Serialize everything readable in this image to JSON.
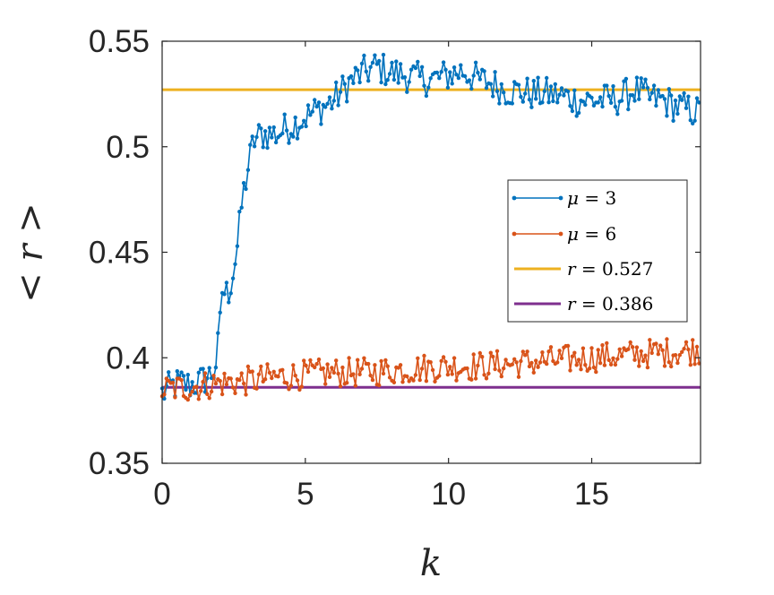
{
  "chart_data": {
    "type": "line",
    "title": "",
    "xlabel": "k",
    "ylabel": "< r >",
    "xlim": [
      0,
      18.8
    ],
    "ylim": [
      0.35,
      0.55
    ],
    "xticks": [
      0,
      5,
      10,
      15
    ],
    "yticks": [
      0.35,
      0.4,
      0.45,
      0.5,
      0.55
    ],
    "xtick_labels": [
      "0",
      "5",
      "10",
      "15"
    ],
    "ytick_labels": [
      "0.35",
      "0.4",
      "0.45",
      "0.5",
      "0.55"
    ],
    "grid": false,
    "legend_position": "right",
    "series": [
      {
        "name": "μ = 3",
        "style": "line-marker",
        "color": "#0072BD",
        "anchors": [
          [
            0,
            0.383
          ],
          [
            0.3,
            0.386
          ],
          [
            0.6,
            0.388
          ],
          [
            1.0,
            0.387
          ],
          [
            1.4,
            0.389
          ],
          [
            1.7,
            0.392
          ],
          [
            1.85,
            0.395
          ],
          [
            2.0,
            0.41
          ],
          [
            2.1,
            0.432
          ],
          [
            2.3,
            0.43
          ],
          [
            2.5,
            0.442
          ],
          [
            2.65,
            0.455
          ],
          [
            2.8,
            0.475
          ],
          [
            3.0,
            0.49
          ],
          [
            3.2,
            0.503
          ],
          [
            3.5,
            0.506
          ],
          [
            4.0,
            0.506
          ],
          [
            4.5,
            0.51
          ],
          [
            5.0,
            0.514
          ],
          [
            5.5,
            0.518
          ],
          [
            6.0,
            0.522
          ],
          [
            6.5,
            0.53
          ],
          [
            7.0,
            0.535
          ],
          [
            7.5,
            0.538
          ],
          [
            8.0,
            0.535
          ],
          [
            8.5,
            0.534
          ],
          [
            9.0,
            0.532
          ],
          [
            9.5,
            0.532
          ],
          [
            10.0,
            0.534
          ],
          [
            10.5,
            0.536
          ],
          [
            11.0,
            0.532
          ],
          [
            11.5,
            0.53
          ],
          [
            12.0,
            0.527
          ],
          [
            12.5,
            0.526
          ],
          [
            13.0,
            0.525
          ],
          [
            13.5,
            0.525
          ],
          [
            14.0,
            0.524
          ],
          [
            14.5,
            0.522
          ],
          [
            15.0,
            0.522
          ],
          [
            15.5,
            0.522
          ],
          [
            16.0,
            0.523
          ],
          [
            16.5,
            0.527
          ],
          [
            17.0,
            0.523
          ],
          [
            17.5,
            0.522
          ],
          [
            18.0,
            0.519
          ],
          [
            18.8,
            0.516
          ]
        ],
        "noise": 0.008,
        "step": 0.075
      },
      {
        "name": "μ = 6",
        "style": "line-marker",
        "color": "#D95319",
        "anchors": [
          [
            0,
            0.385
          ],
          [
            1,
            0.386
          ],
          [
            2,
            0.388
          ],
          [
            3,
            0.389
          ],
          [
            4,
            0.391
          ],
          [
            5,
            0.392
          ],
          [
            6,
            0.393
          ],
          [
            7,
            0.393
          ],
          [
            8,
            0.394
          ],
          [
            9,
            0.395
          ],
          [
            10,
            0.396
          ],
          [
            11,
            0.396
          ],
          [
            12,
            0.397
          ],
          [
            13,
            0.398
          ],
          [
            14,
            0.399
          ],
          [
            15,
            0.4
          ],
          [
            16,
            0.401
          ],
          [
            17,
            0.402
          ],
          [
            18,
            0.403
          ],
          [
            18.8,
            0.404
          ]
        ],
        "noise": 0.007,
        "step": 0.075
      },
      {
        "name": "r = 0.527",
        "style": "hline",
        "color": "#EDB120",
        "value": 0.527
      },
      {
        "name": "r = 0.386",
        "style": "hline",
        "color": "#7E2F8E",
        "value": 0.386
      }
    ],
    "legend": [
      {
        "prefix": "μ",
        "eq": " = ",
        "value": "3"
      },
      {
        "prefix": "μ",
        "eq": " = ",
        "value": "6"
      },
      {
        "prefix": "r",
        "eq": " = ",
        "value": "0.527"
      },
      {
        "prefix": "r",
        "eq": " = ",
        "value": "0.386"
      }
    ]
  }
}
